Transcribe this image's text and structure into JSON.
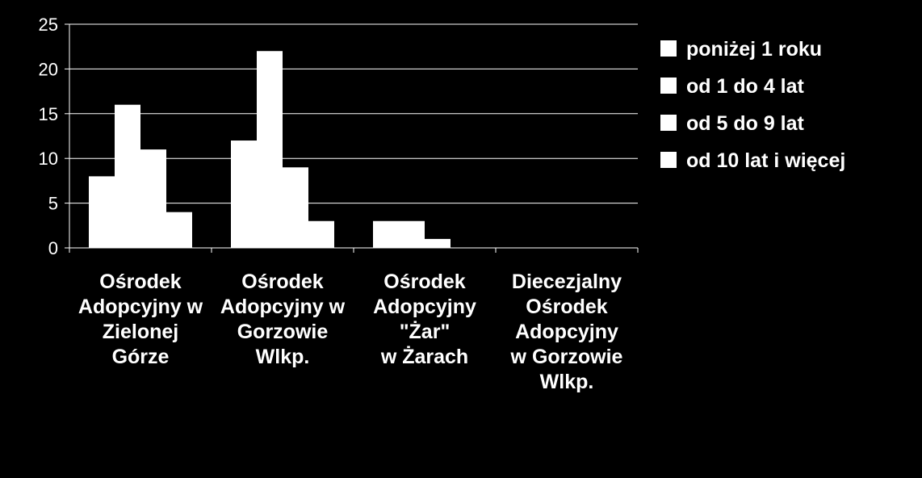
{
  "chart_data": {
    "type": "bar",
    "categories": [
      [
        "Ośrodek",
        "Adopcyjny w",
        "Zielonej",
        "Górze"
      ],
      [
        "Ośrodek",
        "Adopcyjny w",
        "Gorzowie",
        "Wlkp."
      ],
      [
        "Ośrodek",
        "Adopcyjny",
        "\"Żar\"",
        "w Żarach"
      ],
      [
        "Diecezjalny",
        "Ośrodek",
        "Adopcyjny",
        "w Gorzowie",
        "Wlkp."
      ]
    ],
    "series": [
      {
        "name": "poniżej 1 roku",
        "values": [
          8,
          12,
          3,
          0
        ]
      },
      {
        "name": "od 1 do 4 lat",
        "values": [
          16,
          22,
          3,
          0
        ]
      },
      {
        "name": "od 5 do 9 lat",
        "values": [
          11,
          9,
          1,
          0
        ]
      },
      {
        "name": "od 10 lat i więcej",
        "values": [
          4,
          3,
          0,
          0
        ]
      }
    ],
    "yticks": [
      0,
      5,
      10,
      15,
      20,
      25
    ],
    "ylim": [
      0,
      25
    ],
    "grid": true,
    "legend_position": "right",
    "colors": {
      "background": "#000000",
      "bars": "#ffffff",
      "grid": "#ffffff",
      "text": "#ffffff"
    }
  }
}
